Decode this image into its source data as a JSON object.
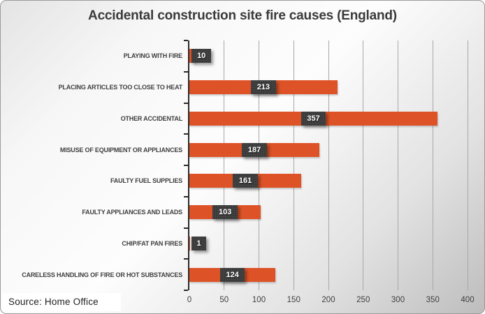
{
  "chart_data": {
    "type": "bar",
    "orientation": "horizontal",
    "title": "Accidental construction site fire causes (England)",
    "categories": [
      "PLAYING WITH FIRE",
      "PLACING ARTICLES TOO CLOSE TO HEAT",
      "OTHER ACCIDENTAL",
      "MISUSE OF EQUIPMENT OR APPLIANCES",
      "FAULTY FUEL SUPPLIES",
      "FAULTY APPLIANCES AND LEADS",
      "CHIP/FAT PAN FIRES",
      "CARELESS HANDLING OF FIRE OR HOT SUBSTANCES"
    ],
    "values": [
      10,
      213,
      357,
      187,
      161,
      103,
      1,
      124
    ],
    "xlabel": "",
    "ylabel": "",
    "xlim": [
      0,
      400
    ],
    "xticks": [
      0,
      50,
      100,
      150,
      200,
      250,
      300,
      350,
      400
    ],
    "grid": true,
    "legend": "none",
    "data_labels": true,
    "colors": {
      "bar": "#dd5327",
      "data_label_bg": "#3b3b3b",
      "data_label_text": "#ffffff",
      "axis_line": "#2b2b2b",
      "gridline": "#a8a8a8",
      "text": "#3f3f3f"
    }
  },
  "source": {
    "label": "Source: Home Office"
  }
}
